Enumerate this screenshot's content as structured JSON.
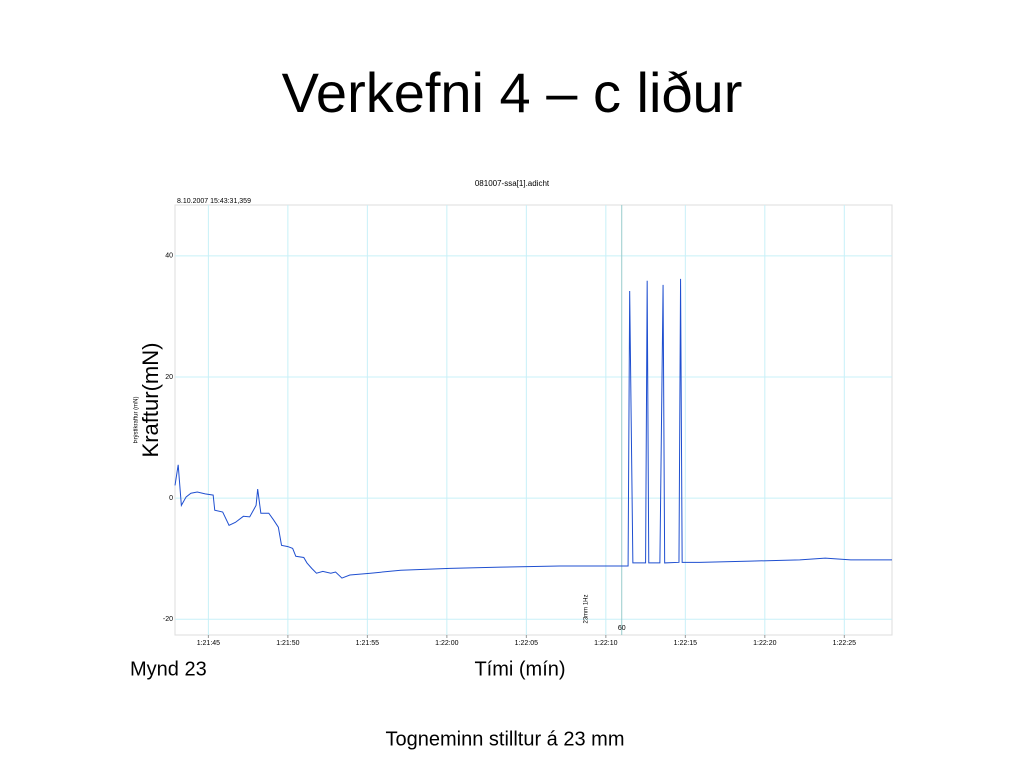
{
  "title": "Verkefni 4 – c liður",
  "figure_label": "Mynd 23",
  "caption": "Togneminn stilltur á 23 mm",
  "chart_data": {
    "type": "line",
    "title": "081007-ssa[1].adicht",
    "subtitle": "8.10.2007 15:43:31,359",
    "x_label": "Tími (mín)",
    "y_label": "Kraftur(mN)",
    "y_label_original": "Þrýstikraftur (mN)",
    "x": [
      4902.9,
      4903.1,
      4903.3,
      4903.6,
      4903.9,
      4904.3,
      4904.8,
      4905.3,
      4905.4,
      4905.9,
      4906.3,
      4906.7,
      4907.2,
      4907.6,
      4908.0,
      4908.1,
      4908.3,
      4908.8,
      4909.1,
      4909.4,
      4909.6,
      4910.0,
      4910.3,
      4910.5,
      4911.0,
      4911.2,
      4911.5,
      4911.8,
      4912.2,
      4912.7,
      4913.0,
      4913.4,
      4913.9,
      4915.2,
      4917.1,
      4920.2,
      4923.4,
      4927.1,
      4931.4,
      4931.5,
      4931.7,
      4932.5,
      4932.6,
      4932.7,
      4933.4,
      4933.6,
      4933.7,
      4934.6,
      4934.7,
      4934.8,
      4935.9,
      4939.1,
      4942.2,
      4943.8,
      4945.4,
      4948.0
    ],
    "series": [
      {
        "color": "#1f4fd0",
        "values": [
          2.1,
          5.5,
          -1.2,
          0.2,
          0.8,
          1.0,
          0.7,
          0.5,
          -2.0,
          -2.3,
          -4.5,
          -4.0,
          -3.0,
          -3.1,
          -1.2,
          1.5,
          -2.5,
          -2.5,
          -3.6,
          -4.8,
          -7.8,
          -8.0,
          -8.3,
          -9.6,
          -9.8,
          -10.7,
          -11.6,
          -12.4,
          -12.1,
          -12.4,
          -12.2,
          -13.2,
          -12.7,
          -12.4,
          -11.9,
          -11.6,
          -11.4,
          -11.2,
          -11.2,
          34.2,
          -10.7,
          -10.7,
          35.9,
          -10.7,
          -10.7,
          35.2,
          -10.7,
          -10.6,
          36.2,
          -10.6,
          -10.6,
          -10.4,
          -10.2,
          -9.9,
          -10.2,
          -10.2
        ]
      }
    ],
    "xlim": [
      4902.9,
      4948.0
    ],
    "ylim": [
      -22.6,
      48.4
    ],
    "xticks": [
      {
        "value": 4905,
        "label": "1:21:45"
      },
      {
        "value": 4910,
        "label": "1:21:50"
      },
      {
        "value": 4915,
        "label": "1:21:55"
      },
      {
        "value": 4920,
        "label": "1:22:00"
      },
      {
        "value": 4925,
        "label": "1:22:05"
      },
      {
        "value": 4930,
        "label": "1:22:10"
      },
      {
        "value": 4935,
        "label": "1:22:15"
      },
      {
        "value": 4940,
        "label": "1:22:20"
      },
      {
        "value": 4945,
        "label": "1:22:25"
      }
    ],
    "yticks": [
      -20,
      0,
      20,
      40
    ],
    "grid": true,
    "marker": {
      "x": 4931.0,
      "label": "60",
      "note": "23mm 1Hz"
    }
  }
}
